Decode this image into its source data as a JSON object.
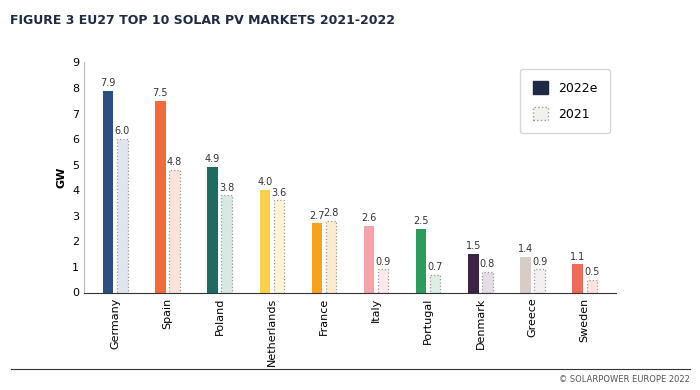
{
  "chart_data": {
    "type": "bar",
    "title": "FIGURE 3 EU27 TOP 10 SOLAR PV MARKETS 2021-2022",
    "y_label": "GW",
    "note": "© SOLARPOWER EUROPE 2022",
    "categories": [
      "Germany",
      "Spain",
      "Poland",
      "Netherlands",
      "France",
      "Italy",
      "Portugal",
      "Denmark",
      "Greece",
      "Sweden"
    ],
    "series": [
      {
        "name": "2022e",
        "color": "#1f2a44",
        "line_style": "solid",
        "colors": [
          "#2b4f81",
          "#f26a3d",
          "#1f6b63",
          "#fcd04b",
          "#f7a21b",
          "#f4a3a6",
          "#2a9d5c",
          "#3b2343",
          "#d8ccc8",
          "#ee6b5a"
        ],
        "values": [
          7.9,
          7.5,
          4.9,
          4.0,
          2.7,
          2.6,
          2.5,
          1.5,
          1.4,
          1.1
        ]
      },
      {
        "name": "2021",
        "color": "#f4f1ea",
        "line_style": "dotted",
        "colors": [
          "#dfe6ee",
          "#fde3d9",
          "#d9e8e5",
          "#fef5d6",
          "#fdebcc",
          "#fde9ea",
          "#dbf0e3",
          "#e4dde6",
          "#f3f0ef",
          "#fde2de"
        ],
        "values": [
          6.0,
          4.8,
          3.8,
          3.6,
          2.8,
          0.9,
          0.7,
          0.8,
          0.9,
          0.5
        ]
      }
    ],
    "ylim": [
      0,
      9
    ],
    "yticks": [
      0,
      1,
      2,
      3,
      4,
      5,
      6,
      7,
      8,
      9
    ],
    "grid": false,
    "legend": "upper right",
    "data_labels": true
  }
}
